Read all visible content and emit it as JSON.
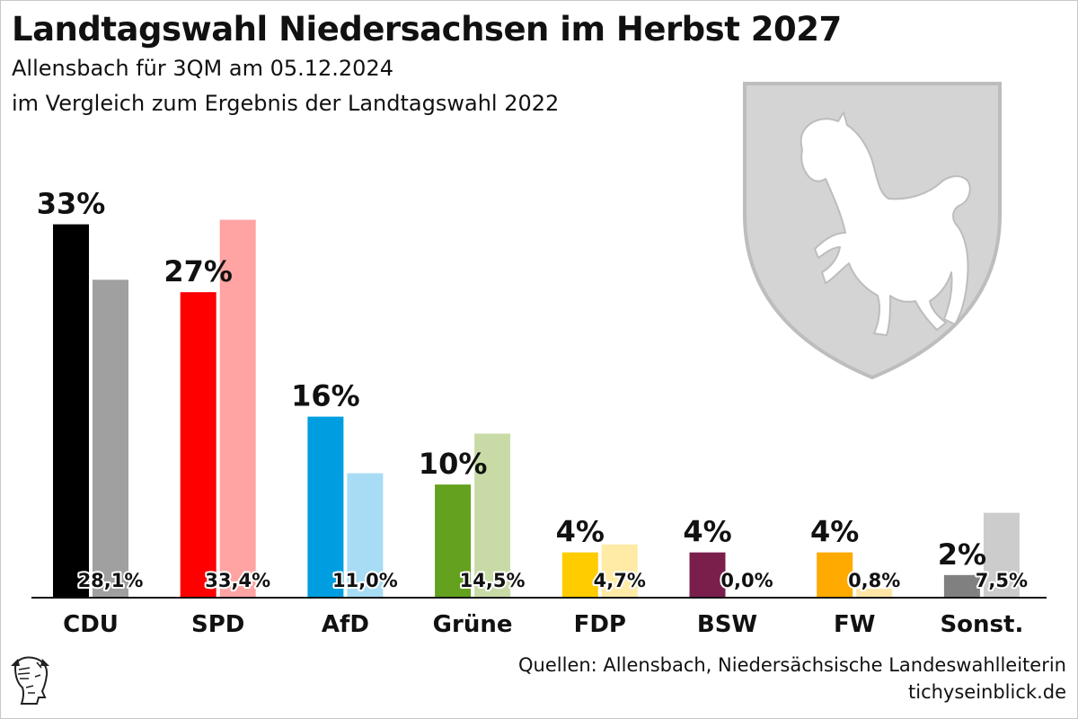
{
  "header": {
    "title": "Landtagswahl Niedersachsen im Herbst 2027",
    "subtitle_line1": "Allensbach für 3QM am 05.12.2024",
    "subtitle_line2": "im Vergleich zum Ergebnis der Landtagswahl 2022"
  },
  "footer": {
    "source": "Quellen: Allensbach, Niedersächsische Landeswahlleiterin",
    "website": "tichyseinblick.de"
  },
  "chart_data": {
    "type": "bar",
    "categories": [
      "CDU",
      "SPD",
      "AfD",
      "Grüne",
      "FDP",
      "BSW",
      "FW",
      "Sonst."
    ],
    "series": [
      {
        "values": [
          33,
          27,
          16,
          10,
          4,
          4,
          4,
          2
        ],
        "labels": [
          "33%",
          "27%",
          "16%",
          "10%",
          "4%",
          "4%",
          "4%",
          "2%"
        ],
        "colors": [
          "#000000",
          "#ff0000",
          "#009ee0",
          "#64a11e",
          "#ffcc00",
          "#7a1f4c",
          "#ffaa00",
          "#808080"
        ]
      },
      {
        "values": [
          28.1,
          33.4,
          11.0,
          14.5,
          4.7,
          0.0,
          0.8,
          7.5
        ],
        "labels": [
          "28,1%",
          "33,4%",
          "11,0%",
          "14,5%",
          "4,7%",
          "0,0%",
          "0,8%",
          "7,5%"
        ],
        "colors": [
          "#a0a0a0",
          "#ffa3a3",
          "#a8dcf4",
          "#c8dba6",
          "#ffeaa6",
          "#d9c0cc",
          "#ffe6a6",
          "#cccccc"
        ]
      }
    ],
    "ylim": [
      0,
      34
    ],
    "grid": false,
    "legend": "none"
  },
  "graphics": {
    "coat_of_arms": "lower-saxony-horse-shield",
    "publisher_logo": "hermes-head-logo"
  }
}
